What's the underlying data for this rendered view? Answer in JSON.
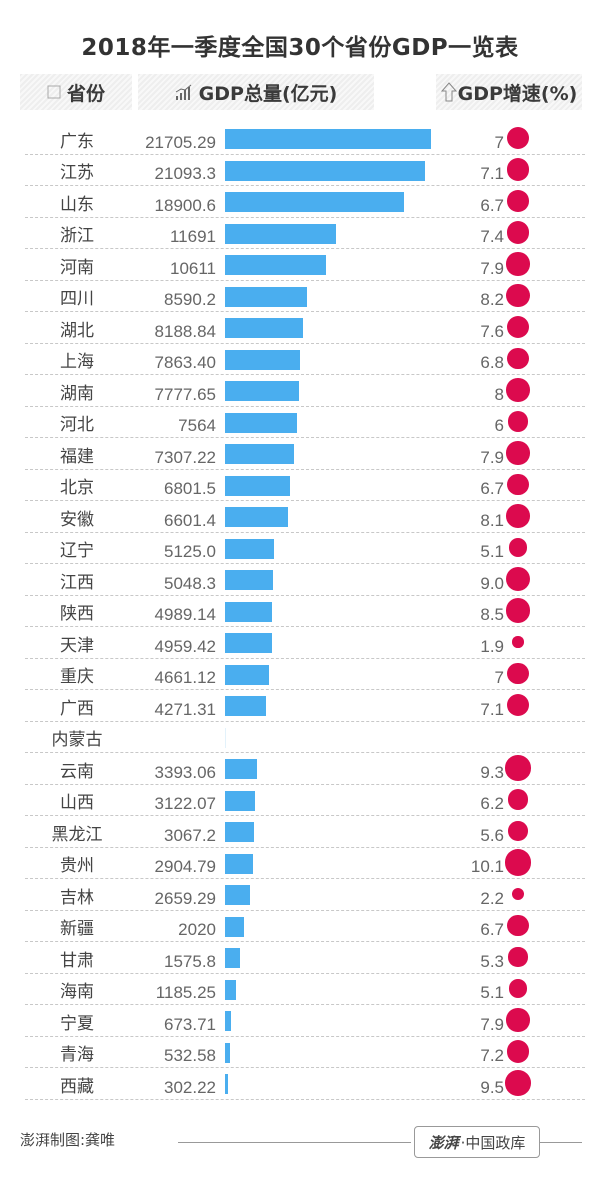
{
  "title": "2018年一季度全国30个省份GDP一览表",
  "headers": {
    "province": "省份",
    "gdp": "GDP总量(亿元)",
    "growth": "GDP增速(%)",
    "province_icon": "checkbox-square-icon",
    "gdp_icon": "bar-chart-icon",
    "growth_icon": "up-arrow-icon"
  },
  "colors": {
    "bar": "#4aaeef",
    "dot": "#dc0a4e",
    "header_bg": "#f2f2f2"
  },
  "chart_data": {
    "type": "table",
    "title": "2018年一季度全国30个省份GDP一览表",
    "columns": [
      "省份",
      "GDP总量(亿元)",
      "GDP增速(%)"
    ],
    "bar_max_value": 21705.29,
    "rows": [
      {
        "province": "广东",
        "gdp": "21705.29",
        "growth": "7"
      },
      {
        "province": "江苏",
        "gdp": "21093.3",
        "growth": "7.1"
      },
      {
        "province": "山东",
        "gdp": "18900.6",
        "growth": "6.7"
      },
      {
        "province": "浙江",
        "gdp": "11691",
        "growth": "7.4"
      },
      {
        "province": "河南",
        "gdp": "10611",
        "growth": "7.9"
      },
      {
        "province": "四川",
        "gdp": "8590.2",
        "growth": "8.2"
      },
      {
        "province": "湖北",
        "gdp": "8188.84",
        "growth": "7.6"
      },
      {
        "province": "上海",
        "gdp": "7863.40",
        "growth": "6.8"
      },
      {
        "province": "湖南",
        "gdp": "7777.65",
        "growth": "8"
      },
      {
        "province": "河北",
        "gdp": "7564",
        "growth": "6"
      },
      {
        "province": "福建",
        "gdp": "7307.22",
        "growth": "7.9"
      },
      {
        "province": "北京",
        "gdp": "6801.5",
        "growth": "6.7"
      },
      {
        "province": "安徽",
        "gdp": "6601.4",
        "growth": "8.1"
      },
      {
        "province": "辽宁",
        "gdp": "5125.0",
        "growth": "5.1"
      },
      {
        "province": "江西",
        "gdp": "5048.3",
        "growth": "9.0"
      },
      {
        "province": "陕西",
        "gdp": "4989.14",
        "growth": "8.5"
      },
      {
        "province": "天津",
        "gdp": "4959.42",
        "growth": "1.9"
      },
      {
        "province": "重庆",
        "gdp": "4661.12",
        "growth": "7"
      },
      {
        "province": "广西",
        "gdp": "4271.31",
        "growth": "7.1"
      },
      {
        "province": "内蒙古",
        "gdp": "",
        "growth": ""
      },
      {
        "province": "云南",
        "gdp": "3393.06",
        "growth": "9.3"
      },
      {
        "province": "山西",
        "gdp": "3122.07",
        "growth": "6.2"
      },
      {
        "province": "黑龙江",
        "gdp": "3067.2",
        "growth": "5.6"
      },
      {
        "province": "贵州",
        "gdp": "2904.79",
        "growth": "10.1"
      },
      {
        "province": "吉林",
        "gdp": "2659.29",
        "growth": "2.2"
      },
      {
        "province": "新疆",
        "gdp": "2020",
        "growth": "6.7"
      },
      {
        "province": "甘肃",
        "gdp": "1575.8",
        "growth": "5.3"
      },
      {
        "province": "海南",
        "gdp": "1185.25",
        "growth": "5.1"
      },
      {
        "province": "宁夏",
        "gdp": "673.71",
        "growth": "7.9"
      },
      {
        "province": "青海",
        "gdp": "532.58",
        "growth": "7.2"
      },
      {
        "province": "西藏",
        "gdp": "302.22",
        "growth": "9.5"
      }
    ]
  },
  "footer": {
    "credit": "澎湃制图:龚唯",
    "logo_brand": "澎湃",
    "logo_text": "·中国政库"
  }
}
